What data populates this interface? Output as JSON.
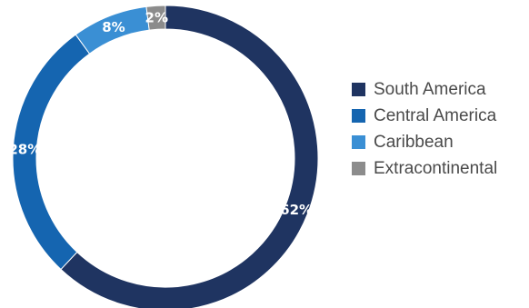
{
  "chart_data": {
    "type": "pie",
    "subtype": "donut",
    "unit": "%",
    "categories": [
      "South America",
      "Central America",
      "Caribbean",
      "Extracontinental"
    ],
    "values": [
      62,
      28,
      8,
      2
    ],
    "value_labels": [
      "62%",
      "28%",
      "8%",
      "2%"
    ],
    "colors": [
      "#1f3461",
      "#1565b0",
      "#3a8fd4",
      "#8c8c8c"
    ],
    "legend_position": "right",
    "title": ""
  }
}
